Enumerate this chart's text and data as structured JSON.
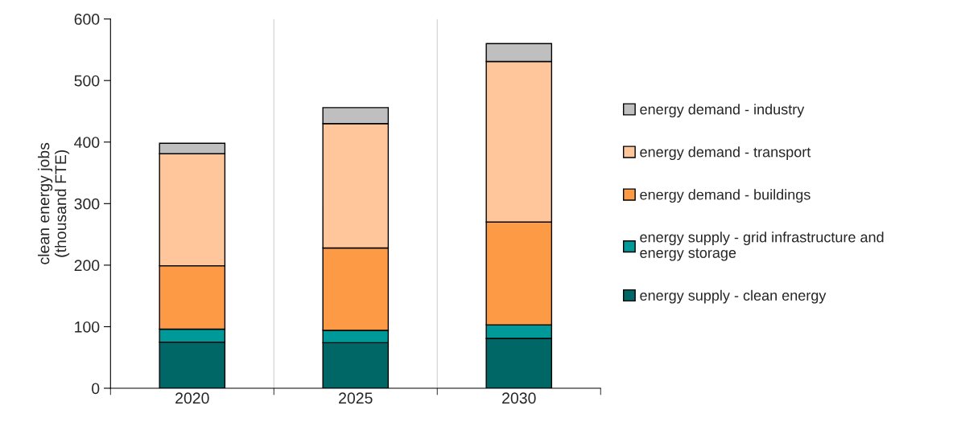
{
  "chart_data": {
    "type": "bar",
    "stacked": true,
    "ylabel": "clean energy jobs\n(thousand FTE)",
    "categories": [
      "2020",
      "2025",
      "2030"
    ],
    "series": [
      {
        "name": "energy supply - clean energy",
        "color": "#006766",
        "values": [
          75,
          74,
          81
        ]
      },
      {
        "name": "energy supply - grid infrastructure and\nenergy storage",
        "color": "#009999",
        "values": [
          21,
          20,
          22
        ]
      },
      {
        "name": "energy demand - buildings",
        "color": "#fd9a45",
        "values": [
          103,
          134,
          167
        ]
      },
      {
        "name": "energy demand - transport",
        "color": "#ffc69b",
        "values": [
          182,
          202,
          261
        ]
      },
      {
        "name": "energy demand - industry",
        "color": "#bfbfbf",
        "values": [
          17,
          26,
          29
        ]
      }
    ],
    "ylim": [
      0,
      600
    ],
    "yticks": [
      0,
      100,
      200,
      300,
      400,
      500,
      600
    ],
    "grid": "x",
    "legend": "right"
  }
}
